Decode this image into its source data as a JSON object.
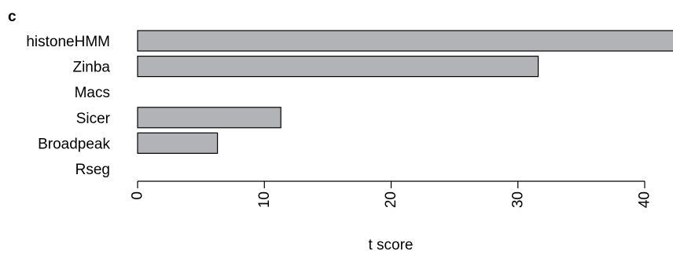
{
  "panel_label": "c",
  "chart_data": {
    "type": "bar",
    "orientation": "horizontal",
    "categories": [
      "histoneHMM",
      "Zinba",
      "Macs",
      "Sicer",
      "Broadpeak",
      "Rseg"
    ],
    "values": [
      43.5,
      31.6,
      0,
      11.3,
      6.3,
      0
    ],
    "xlabel": "t score",
    "ylabel": "",
    "xlim": [
      0,
      40
    ],
    "xticks": [
      0,
      10,
      20,
      30,
      40
    ],
    "bar_color": "#b2b3b7",
    "bar_edge_color": "#000000",
    "grid": false,
    "legend": "none"
  }
}
